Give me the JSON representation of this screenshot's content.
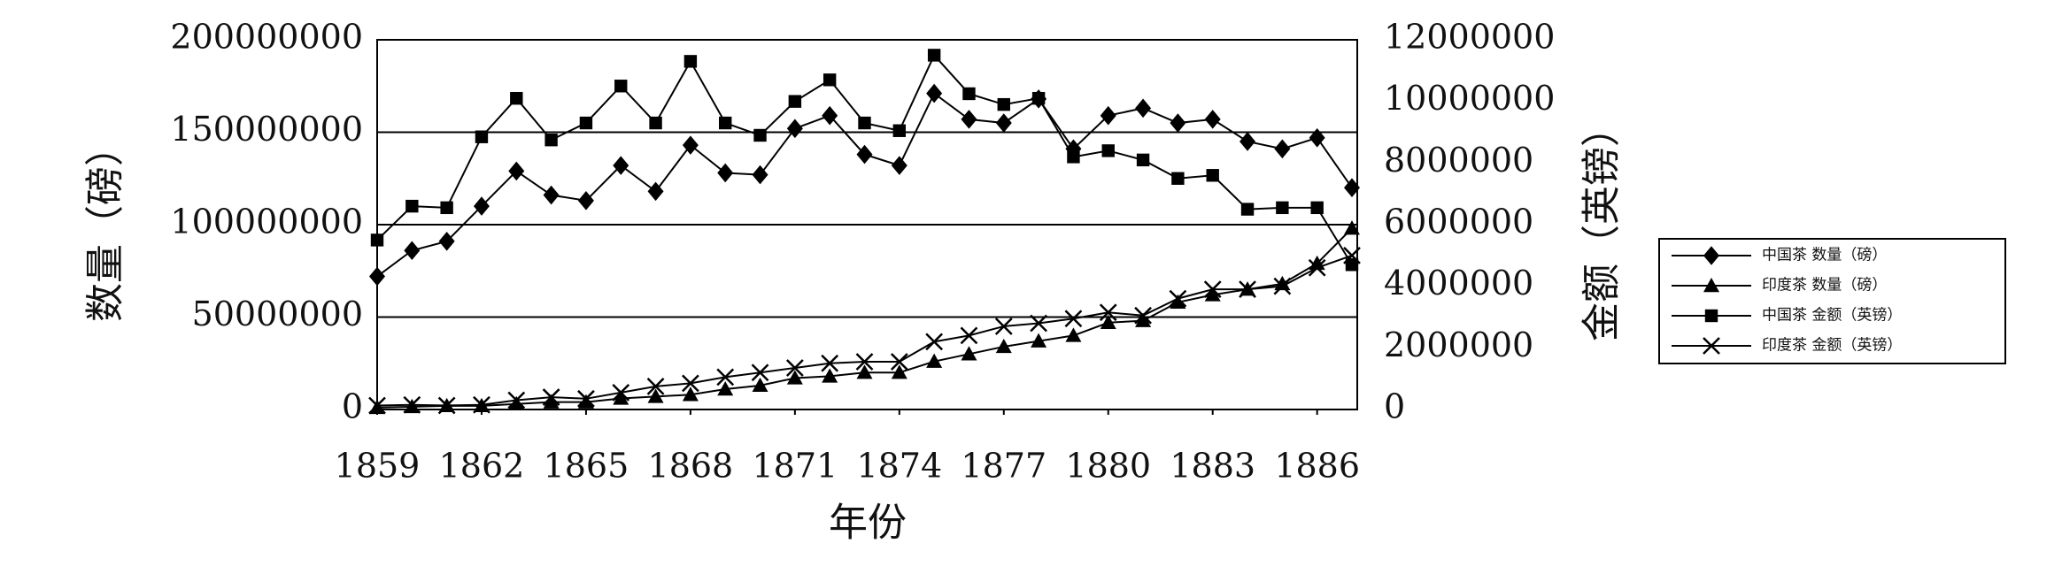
{
  "chart_data": {
    "type": "line",
    "x_label": "年份",
    "y_label": "数量（磅）",
    "y2_label": "金额（英镑）",
    "x": [
      1859,
      1860,
      1861,
      1862,
      1863,
      1864,
      1865,
      1866,
      1867,
      1868,
      1869,
      1870,
      1871,
      1872,
      1873,
      1874,
      1875,
      1876,
      1877,
      1878,
      1879,
      1880,
      1881,
      1882,
      1883,
      1884,
      1885,
      1886,
      1887
    ],
    "xlim": [
      1859,
      1887
    ],
    "xticks": [
      1859,
      1862,
      1865,
      1868,
      1871,
      1874,
      1877,
      1880,
      1883,
      1886
    ],
    "ylim": [
      0,
      200000000
    ],
    "yticks": [
      0,
      50000000,
      100000000,
      150000000,
      200000000
    ],
    "y2lim": [
      0,
      12000000
    ],
    "y2ticks": [
      0,
      2000000,
      4000000,
      6000000,
      8000000,
      10000000,
      12000000
    ],
    "grid": true,
    "series": [
      {
        "name": "中国茶 数量（磅）",
        "color": "#000000",
        "marker": "diamond",
        "values": [
          72000000,
          86000000,
          91000000,
          110000000,
          129000000,
          116000000,
          113000000,
          132000000,
          118000000,
          143000000,
          128000000,
          127000000,
          152000000,
          159000000,
          138000000,
          132000000,
          171000000,
          157000000,
          155000000,
          168000000,
          141000000,
          159000000,
          163000000,
          155000000,
          157000000,
          145000000,
          141000000,
          147000000,
          120000000
        ]
      },
      {
        "name": "印度茶 数量（磅）",
        "color": "#000000",
        "marker": "triangle",
        "values": [
          1000000,
          1500000,
          2000000,
          2000000,
          3000000,
          4000000,
          4000000,
          6000000,
          7000000,
          8000000,
          11000000,
          13000000,
          17000000,
          18000000,
          20000000,
          20000000,
          26000000,
          30000000,
          34000000,
          37000000,
          40000000,
          47000000,
          48000000,
          58000000,
          62000000,
          65000000,
          68000000,
          79000000,
          98000000
        ]
      },
      {
        "name": "中国茶 金额（英镑）",
        "color": "#000000",
        "marker": "square",
        "axis": "y2",
        "values": [
          5500000,
          6600000,
          6550000,
          8850000,
          10100000,
          8750000,
          9300000,
          10500000,
          9300000,
          11300000,
          9300000,
          8900000,
          10000000,
          10700000,
          9300000,
          9050000,
          11500000,
          10250000,
          9900000,
          10100000,
          8200000,
          8400000,
          8100000,
          7500000,
          7600000,
          6500000,
          6550000,
          6550000,
          4700000
        ]
      },
      {
        "name": "印度茶 金额（英镑）",
        "color": "#000000",
        "marker": "x",
        "axis": "y2",
        "values": [
          130000,
          150000,
          130000,
          150000,
          300000,
          400000,
          350000,
          550000,
          750000,
          850000,
          1050000,
          1200000,
          1350000,
          1500000,
          1550000,
          1550000,
          2200000,
          2400000,
          2700000,
          2800000,
          2950000,
          3150000,
          3050000,
          3600000,
          3900000,
          3900000,
          4000000,
          4600000,
          5000000
        ]
      }
    ]
  }
}
